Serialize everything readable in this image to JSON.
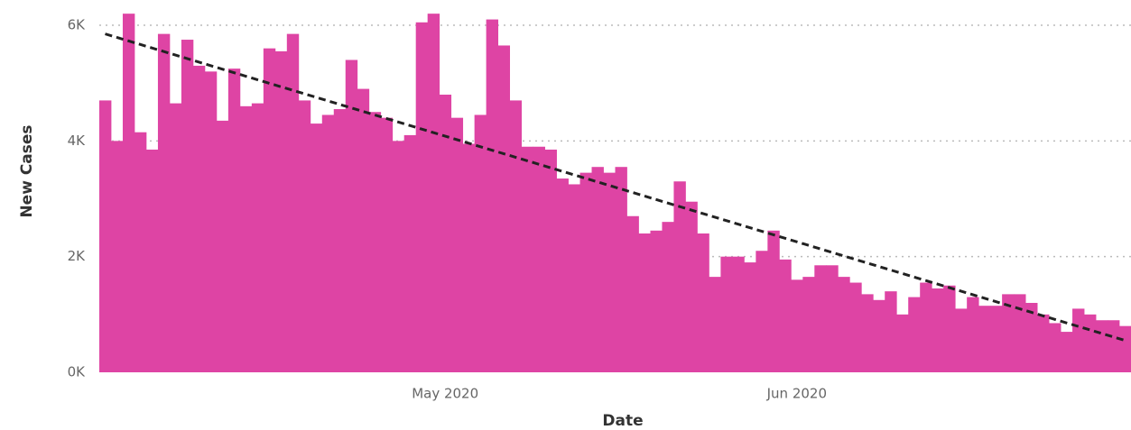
{
  "chart_data": {
    "type": "bar",
    "x_label": "Date",
    "y_label": "New Cases",
    "color": "#de44a4",
    "grid": true,
    "ylim": [
      0,
      6000
    ],
    "yticks": [
      {
        "value": 0,
        "label": "0K"
      },
      {
        "value": 2000,
        "label": "2K"
      },
      {
        "value": 4000,
        "label": "4K"
      },
      {
        "value": 6000,
        "label": "6K"
      }
    ],
    "categories": [
      null,
      null,
      null,
      null,
      null,
      null,
      null,
      null,
      null,
      null,
      null,
      null,
      null,
      null,
      null,
      null,
      null,
      null,
      null,
      null,
      null,
      null,
      null,
      null,
      null,
      null,
      null,
      null,
      null,
      "May 2020",
      null,
      null,
      null,
      null,
      null,
      null,
      null,
      null,
      null,
      null,
      null,
      null,
      null,
      null,
      null,
      null,
      null,
      null,
      null,
      null,
      null,
      null,
      null,
      null,
      null,
      null,
      null,
      null,
      null,
      "Jun 2020",
      null,
      null,
      null,
      null,
      null,
      null,
      null,
      null,
      null,
      null,
      null,
      null,
      null,
      null,
      null,
      null,
      null,
      null,
      null,
      null,
      null,
      null,
      null,
      null,
      null,
      null,
      null,
      null
    ],
    "values": [
      4700,
      4000,
      6200,
      4150,
      3850,
      5850,
      4650,
      5750,
      5300,
      5200,
      4350,
      5250,
      4600,
      4650,
      5600,
      5550,
      5850,
      4700,
      4300,
      4450,
      4550,
      5400,
      4900,
      4500,
      4400,
      4000,
      4100,
      6050,
      6200,
      4800,
      4400,
      3950,
      4450,
      6100,
      5650,
      4700,
      3900,
      3900,
      3850,
      3350,
      3250,
      3450,
      3550,
      3450,
      3550,
      2700,
      2400,
      2450,
      2600,
      3300,
      2950,
      2400,
      1650,
      2000,
      2000,
      1900,
      2100,
      2450,
      1950,
      1600,
      1650,
      1850,
      1850,
      1650,
      1550,
      1350,
      1250,
      1400,
      1000,
      1300,
      1550,
      1450,
      1500,
      1100,
      1300,
      1150,
      1150,
      1350,
      1350,
      1200,
      1000,
      850,
      700,
      1100,
      1000,
      900,
      900,
      800
    ],
    "trendline": {
      "values": [
        5850,
        550
      ],
      "color": "#222222"
    }
  }
}
